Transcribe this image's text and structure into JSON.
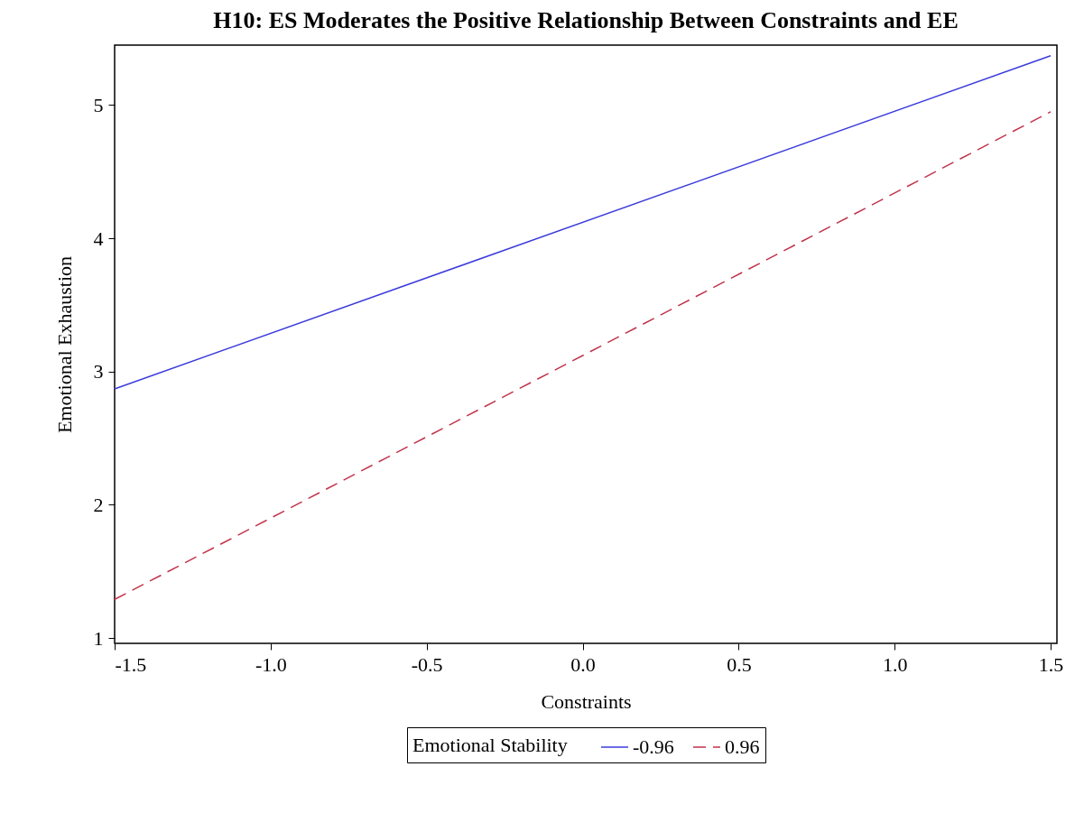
{
  "chart_data": {
    "type": "line",
    "title": "H10: ES Moderates the Positive Relationship Between Constraints and EE",
    "xlabel": "Constraints",
    "ylabel": "Emotional Exhaustion",
    "legend_title": "Emotional Stability",
    "legend": "bottom",
    "marker": "none",
    "x": [
      -1.5,
      1.5
    ],
    "series": [
      {
        "name": "-0.96",
        "color": "#3b3bdb",
        "line_style": "solid",
        "values": [
          2.87,
          5.37
        ]
      },
      {
        "name": "0.96",
        "color": "#c0334a",
        "line_style": "dashed",
        "values": [
          1.29,
          4.95
        ]
      }
    ],
    "xlim": [
      -1.5,
      1.52
    ],
    "ylim": [
      0.96,
      5.45
    ],
    "xticks": [
      -1.5,
      {
        "value": -1,
        "label": "-1.0"
      },
      -0.5,
      {
        "value": 0,
        "label": "0.0"
      },
      0.5,
      {
        "value": 1,
        "label": "1.0"
      },
      1.5
    ],
    "yticks": [
      1,
      2,
      3,
      4,
      5
    ]
  }
}
